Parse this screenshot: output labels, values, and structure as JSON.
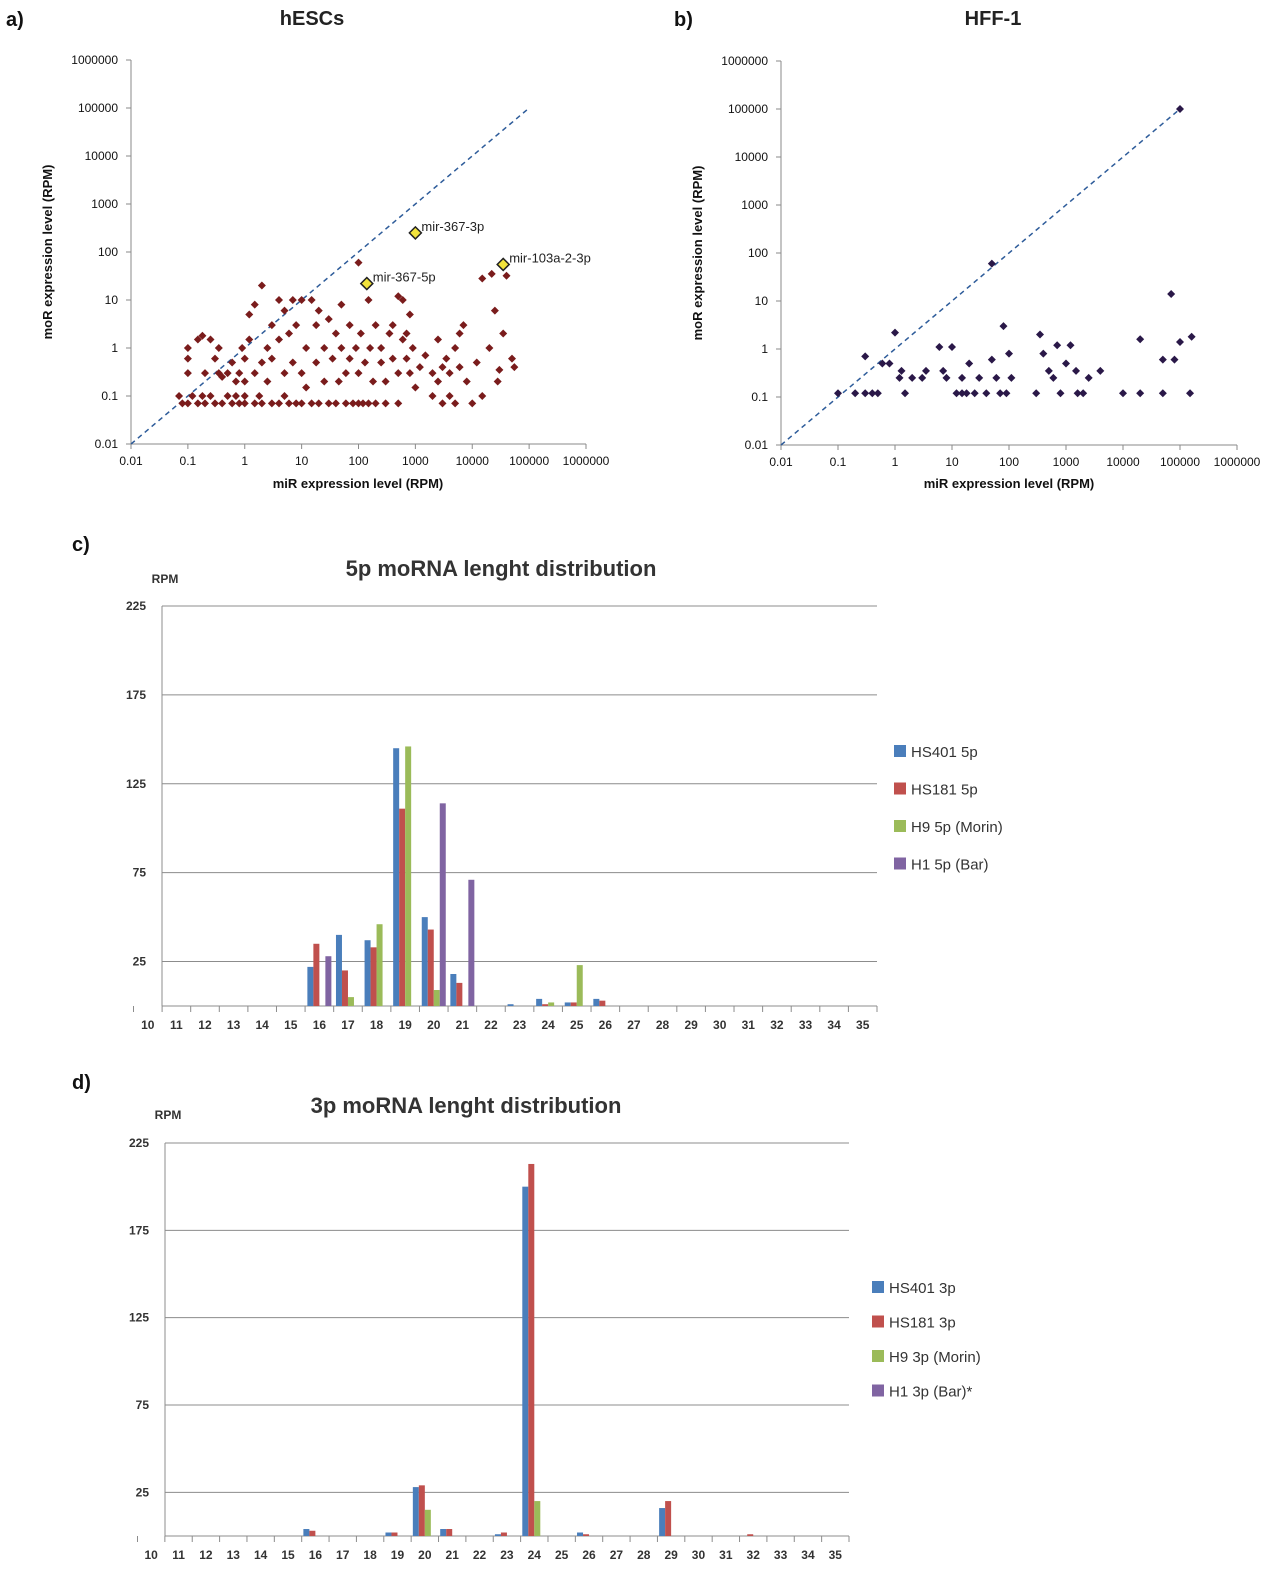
{
  "panels": {
    "a_label": "a)",
    "b_label": "b)",
    "c_label": "c)",
    "d_label": "d)"
  },
  "chart_data": [
    {
      "type": "scatter",
      "panel": "a)",
      "title": "hESCs",
      "xlabel": "miR expression level (RPM)",
      "ylabel": "moR expression level (RPM)",
      "scale": "log10",
      "xlim": [
        0.01,
        1000000
      ],
      "ylim": [
        0.01,
        1000000
      ],
      "xticks": [
        "0.01",
        "0.1",
        "1",
        "10",
        "100",
        "1000",
        "10000",
        "100000",
        "1000000"
      ],
      "yticks": [
        "0.01",
        "0.1",
        "1",
        "10",
        "100",
        "1000",
        "10000",
        "100000",
        "1000000"
      ],
      "marker_color": "#7a1c1c",
      "highlight_color": "#f2e33c",
      "diagonal_color": "#2e5c9a",
      "diagonal": [
        [
          0.01,
          0.01
        ],
        [
          100000,
          100000
        ]
      ],
      "highlighted": [
        {
          "label": "mir-367-3p",
          "x": 1000,
          "y": 250
        },
        {
          "label": "mir-367-5p",
          "x": 140,
          "y": 22
        },
        {
          "label": "mir-103a-2-3p",
          "x": 35000,
          "y": 55
        }
      ],
      "points": [
        [
          0.08,
          0.07
        ],
        [
          0.07,
          0.1
        ],
        [
          0.1,
          0.07
        ],
        [
          0.1,
          1
        ],
        [
          0.1,
          0.6
        ],
        [
          0.1,
          0.3
        ],
        [
          0.12,
          0.1
        ],
        [
          0.15,
          0.07
        ],
        [
          0.15,
          1.5
        ],
        [
          0.18,
          0.1
        ],
        [
          0.18,
          1.8
        ],
        [
          0.2,
          0.07
        ],
        [
          0.2,
          0.3
        ],
        [
          0.25,
          1.5
        ],
        [
          0.25,
          0.1
        ],
        [
          0.3,
          0.07
        ],
        [
          0.3,
          0.6
        ],
        [
          0.35,
          0.3
        ],
        [
          0.35,
          1
        ],
        [
          0.4,
          0.07
        ],
        [
          0.4,
          0.25
        ],
        [
          0.5,
          0.3
        ],
        [
          0.5,
          0.1
        ],
        [
          0.6,
          0.07
        ],
        [
          0.6,
          0.5
        ],
        [
          0.7,
          0.2
        ],
        [
          0.7,
          0.1
        ],
        [
          0.8,
          0.3
        ],
        [
          0.8,
          0.07
        ],
        [
          0.9,
          1
        ],
        [
          1,
          0.07
        ],
        [
          1,
          0.2
        ],
        [
          1,
          0.1
        ],
        [
          1,
          0.6
        ],
        [
          1.2,
          5
        ],
        [
          1.2,
          1.5
        ],
        [
          1.5,
          8
        ],
        [
          1.5,
          0.07
        ],
        [
          1.5,
          0.3
        ],
        [
          1.8,
          0.1
        ],
        [
          2,
          20
        ],
        [
          2,
          0.5
        ],
        [
          2,
          0.07
        ],
        [
          2.5,
          1
        ],
        [
          2.5,
          0.2
        ],
        [
          3,
          0.07
        ],
        [
          3,
          3
        ],
        [
          3,
          0.6
        ],
        [
          4,
          10
        ],
        [
          4,
          0.07
        ],
        [
          4,
          1.5
        ],
        [
          5,
          6
        ],
        [
          5,
          0.3
        ],
        [
          5,
          0.1
        ],
        [
          6,
          2
        ],
        [
          6,
          0.07
        ],
        [
          7,
          10
        ],
        [
          7,
          0.5
        ],
        [
          8,
          0.07
        ],
        [
          8,
          3
        ],
        [
          10,
          0.3
        ],
        [
          10,
          10
        ],
        [
          10,
          0.07
        ],
        [
          12,
          1
        ],
        [
          12,
          0.15
        ],
        [
          15,
          10
        ],
        [
          15,
          0.07
        ],
        [
          18,
          3
        ],
        [
          18,
          0.5
        ],
        [
          20,
          0.07
        ],
        [
          20,
          6
        ],
        [
          25,
          1
        ],
        [
          25,
          0.2
        ],
        [
          30,
          0.07
        ],
        [
          30,
          4
        ],
        [
          35,
          0.6
        ],
        [
          40,
          2
        ],
        [
          40,
          0.07
        ],
        [
          45,
          0.2
        ],
        [
          50,
          1
        ],
        [
          50,
          8
        ],
        [
          60,
          0.07
        ],
        [
          60,
          0.3
        ],
        [
          70,
          3
        ],
        [
          70,
          0.6
        ],
        [
          80,
          0.07
        ],
        [
          90,
          1
        ],
        [
          100,
          0.07
        ],
        [
          100,
          0.3
        ],
        [
          100,
          60
        ],
        [
          110,
          2
        ],
        [
          120,
          0.07
        ],
        [
          130,
          0.5
        ],
        [
          150,
          10
        ],
        [
          150,
          0.07
        ],
        [
          160,
          1
        ],
        [
          180,
          0.2
        ],
        [
          200,
          0.07
        ],
        [
          200,
          3
        ],
        [
          250,
          0.5
        ],
        [
          250,
          1
        ],
        [
          300,
          0.07
        ],
        [
          300,
          0.2
        ],
        [
          350,
          2
        ],
        [
          400,
          0.6
        ],
        [
          400,
          3
        ],
        [
          500,
          12
        ],
        [
          500,
          0.3
        ],
        [
          500,
          0.07
        ],
        [
          600,
          1.5
        ],
        [
          600,
          10
        ],
        [
          700,
          0.6
        ],
        [
          700,
          2
        ],
        [
          800,
          0.3
        ],
        [
          800,
          5
        ],
        [
          900,
          1
        ],
        [
          1000,
          0.15
        ],
        [
          1200,
          0.4
        ],
        [
          1500,
          0.7
        ],
        [
          2000,
          0.1
        ],
        [
          2000,
          0.3
        ],
        [
          2500,
          0.2
        ],
        [
          2500,
          1.5
        ],
        [
          3000,
          0.07
        ],
        [
          3000,
          0.4
        ],
        [
          3500,
          0.6
        ],
        [
          4000,
          0.1
        ],
        [
          4000,
          0.3
        ],
        [
          5000,
          1
        ],
        [
          5000,
          0.07
        ],
        [
          6000,
          2
        ],
        [
          6000,
          0.4
        ],
        [
          7000,
          3
        ],
        [
          8000,
          0.2
        ],
        [
          10000,
          0.07
        ],
        [
          12000,
          0.5
        ],
        [
          15000,
          28
        ],
        [
          15000,
          0.1
        ],
        [
          20000,
          1
        ],
        [
          22000,
          35
        ],
        [
          25000,
          6
        ],
        [
          28000,
          0.2
        ],
        [
          30000,
          0.35
        ],
        [
          35000,
          2
        ],
        [
          40000,
          32
        ],
        [
          50000,
          0.6
        ],
        [
          55000,
          0.4
        ]
      ]
    },
    {
      "type": "scatter",
      "panel": "b)",
      "title": "HFF-1",
      "xlabel": "miR expression level (RPM)",
      "ylabel": "moR expression level (RPM)",
      "scale": "log10",
      "xlim": [
        0.01,
        1000000
      ],
      "ylim": [
        0.01,
        1000000
      ],
      "xticks": [
        "0.01",
        "0.1",
        "1",
        "10",
        "100",
        "1000",
        "10000",
        "100000",
        "1000000"
      ],
      "yticks": [
        "0.01",
        "0.1",
        "1",
        "10",
        "100",
        "1000",
        "10000",
        "100000",
        "1000000"
      ],
      "marker_color": "#2a1848",
      "diagonal_color": "#2e5c9a",
      "diagonal": [
        [
          0.01,
          0.01
        ],
        [
          100000,
          100000
        ]
      ],
      "points": [
        [
          0.1,
          0.12
        ],
        [
          0.2,
          0.12
        ],
        [
          0.3,
          0.12
        ],
        [
          0.3,
          0.7
        ],
        [
          0.4,
          0.12
        ],
        [
          0.5,
          0.12
        ],
        [
          0.6,
          0.5
        ],
        [
          0.8,
          0.5
        ],
        [
          1,
          2.2
        ],
        [
          1.2,
          0.25
        ],
        [
          1.3,
          0.35
        ],
        [
          1.5,
          0.12
        ],
        [
          2,
          0.25
        ],
        [
          3,
          0.25
        ],
        [
          3.5,
          0.35
        ],
        [
          6,
          1.1
        ],
        [
          7,
          0.35
        ],
        [
          8,
          0.25
        ],
        [
          10,
          1.1
        ],
        [
          12,
          0.12
        ],
        [
          15,
          0.25
        ],
        [
          15,
          0.12
        ],
        [
          18,
          0.12
        ],
        [
          20,
          0.5
        ],
        [
          25,
          0.12
        ],
        [
          30,
          0.25
        ],
        [
          40,
          0.12
        ],
        [
          50,
          0.6
        ],
        [
          50,
          60
        ],
        [
          60,
          0.25
        ],
        [
          70,
          0.12
        ],
        [
          80,
          3
        ],
        [
          90,
          0.12
        ],
        [
          100,
          0.8
        ],
        [
          110,
          0.25
        ],
        [
          300,
          0.12
        ],
        [
          350,
          2
        ],
        [
          400,
          0.8
        ],
        [
          500,
          0.35
        ],
        [
          600,
          0.25
        ],
        [
          700,
          1.2
        ],
        [
          800,
          0.12
        ],
        [
          1000,
          0.5
        ],
        [
          1200,
          1.2
        ],
        [
          1500,
          0.35
        ],
        [
          1600,
          0.12
        ],
        [
          2000,
          0.12
        ],
        [
          2500,
          0.25
        ],
        [
          4000,
          0.35
        ],
        [
          10000,
          0.12
        ],
        [
          20000,
          0.12
        ],
        [
          20000,
          1.6
        ],
        [
          50000,
          0.6
        ],
        [
          50000,
          0.12
        ],
        [
          70000,
          14
        ],
        [
          80000,
          0.6
        ],
        [
          100000,
          1.4
        ],
        [
          100000,
          100000
        ],
        [
          150000,
          0.12
        ],
        [
          160000,
          1.8
        ]
      ]
    },
    {
      "type": "bar",
      "panel": "c)",
      "title": "5p moRNA lenght distribution",
      "ylabel": "RPM",
      "ylim": [
        0,
        225
      ],
      "yticks": [
        "25",
        "75",
        "125",
        "175",
        "225"
      ],
      "categories": [
        "10",
        "11",
        "12",
        "13",
        "14",
        "15",
        "16",
        "17",
        "18",
        "19",
        "20",
        "21",
        "22",
        "23",
        "24",
        "25",
        "26",
        "27",
        "28",
        "29",
        "30",
        "31",
        "32",
        "33",
        "34",
        "35"
      ],
      "series": [
        {
          "name": "HS401 5p",
          "color": "#4a7ebb",
          "values": [
            0,
            0,
            0,
            0,
            0,
            0,
            22,
            40,
            37,
            145,
            50,
            18,
            0,
            1,
            4,
            2,
            4,
            0,
            0,
            0,
            0,
            0,
            0,
            0,
            0,
            0
          ]
        },
        {
          "name": "HS181 5p",
          "color": "#c0504d",
          "values": [
            0,
            0,
            0,
            0,
            0,
            0,
            35,
            20,
            33,
            111,
            43,
            13,
            0,
            0,
            1,
            2,
            3,
            0,
            0,
            0,
            0,
            0,
            0,
            0,
            0,
            0
          ]
        },
        {
          "name": "H9 5p (Morin)",
          "color": "#9bbb59",
          "values": [
            0,
            0,
            0,
            0,
            0,
            0,
            0,
            5,
            46,
            146,
            9,
            0,
            0,
            0,
            2,
            23,
            0,
            0,
            0,
            0,
            0,
            0,
            0,
            0,
            0,
            0
          ]
        },
        {
          "name": "H1 5p (Bar)",
          "color": "#8064a2",
          "values": [
            0,
            0,
            0,
            0,
            0,
            0,
            28,
            0,
            0,
            0,
            114,
            71,
            0,
            0,
            0,
            0,
            0,
            0,
            0,
            0,
            0,
            0,
            0,
            0,
            0,
            0
          ]
        }
      ]
    },
    {
      "type": "bar",
      "panel": "d)",
      "title": "3p moRNA lenght distribution",
      "ylabel": "RPM",
      "ylim": [
        0,
        225
      ],
      "yticks": [
        "25",
        "75",
        "125",
        "175",
        "225"
      ],
      "categories": [
        "10",
        "11",
        "12",
        "13",
        "14",
        "15",
        "16",
        "17",
        "18",
        "19",
        "20",
        "21",
        "22",
        "23",
        "24",
        "25",
        "26",
        "27",
        "28",
        "29",
        "30",
        "31",
        "32",
        "33",
        "34",
        "35"
      ],
      "series": [
        {
          "name": "HS401 3p",
          "color": "#4a7ebb",
          "values": [
            0,
            0,
            0,
            0,
            0,
            0,
            4,
            0,
            0,
            2,
            28,
            4,
            0,
            1,
            200,
            0,
            2,
            0,
            0,
            16,
            0,
            0,
            0,
            0,
            0,
            0
          ]
        },
        {
          "name": "HS181 3p",
          "color": "#c0504d",
          "values": [
            0,
            0,
            0,
            0,
            0,
            0,
            3,
            0,
            0,
            2,
            29,
            4,
            0,
            2,
            213,
            0,
            1,
            0,
            0,
            20,
            0,
            0,
            1,
            0,
            0,
            0
          ]
        },
        {
          "name": "H9 3p (Morin)",
          "color": "#9bbb59",
          "values": [
            0,
            0,
            0,
            0,
            0,
            0,
            0,
            0,
            0,
            0,
            15,
            0,
            0,
            0,
            20,
            0,
            0,
            0,
            0,
            0,
            0,
            0,
            0,
            0,
            0,
            0
          ]
        },
        {
          "name": "H1 3p (Bar)*",
          "color": "#8064a2",
          "values": [
            0,
            0,
            0,
            0,
            0,
            0,
            0,
            0,
            0,
            0,
            0,
            0,
            0,
            0,
            0,
            0,
            0,
            0,
            0,
            0,
            0,
            0,
            0,
            0,
            0,
            0
          ]
        }
      ]
    }
  ]
}
